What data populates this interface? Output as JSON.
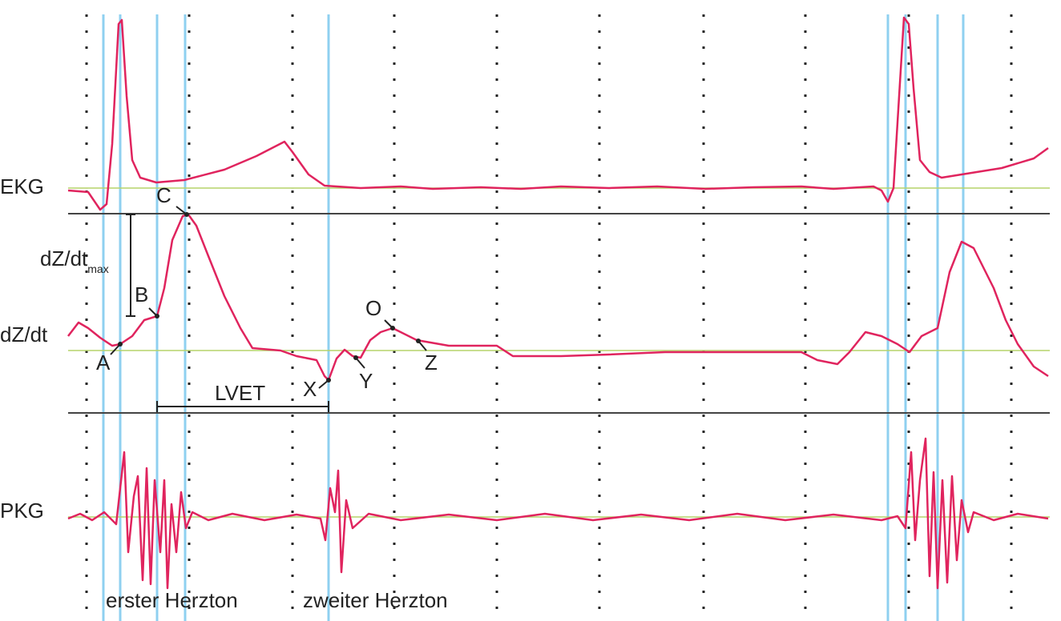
{
  "tracks": [
    {
      "label": "EKG"
    },
    {
      "label": "dZ/dt"
    },
    {
      "label": "PKG"
    }
  ],
  "points": [
    {
      "label": "A"
    },
    {
      "label": "B"
    },
    {
      "label": "C"
    },
    {
      "label": "X"
    },
    {
      "label": "Y"
    },
    {
      "label": "O"
    },
    {
      "label": "Z"
    }
  ],
  "dzdt_max": {
    "label": "dZ/dt",
    "subscript": "max"
  },
  "lvet": "LVET",
  "heart_sounds": [
    "erster Herzton",
    "zweiter Herzton"
  ]
}
